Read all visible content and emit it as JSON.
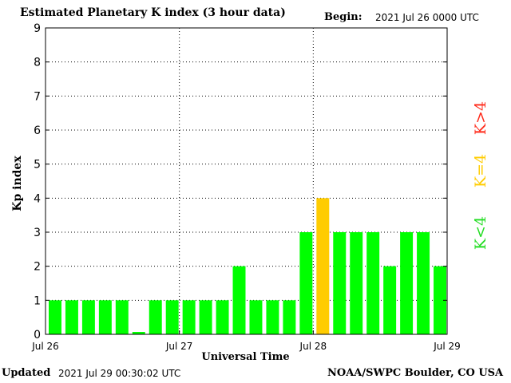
{
  "header": {
    "title": "Estimated Planetary K index (3 hour data)",
    "begin_label": "Begin:",
    "begin_value": "2021 Jul 26 0000 UTC"
  },
  "footer": {
    "updated_label": "Updated",
    "updated_value": "2021 Jul 29 00:30:02 UTC",
    "credit": "NOAA/SWPC Boulder, CO USA"
  },
  "legend": {
    "gt": "K>4",
    "eq": "K=4",
    "lt": "K<4"
  },
  "colors": {
    "below_4": "#00ff00",
    "equal_4": "#ffcc00",
    "above_4": "#ff0000"
  },
  "chart_data": {
    "type": "bar",
    "title": "Estimated Planetary K index (3 hour data)",
    "xlabel": "Universal Time",
    "ylabel": "Kp index",
    "ylim": [
      0,
      9
    ],
    "yticks": [
      "0",
      "1",
      "2",
      "3",
      "4",
      "5",
      "6",
      "7",
      "8",
      "9"
    ],
    "xtick_labels": [
      "Jul 26",
      "Jul 27",
      "Jul 28",
      "Jul 29"
    ],
    "grid": true,
    "interval_hours": 3,
    "values": [
      1,
      1,
      1,
      1,
      1,
      0.07,
      1,
      1,
      1,
      1,
      1,
      2,
      1,
      1,
      1,
      3,
      4,
      3,
      3,
      3,
      2,
      3,
      3,
      2
    ]
  }
}
